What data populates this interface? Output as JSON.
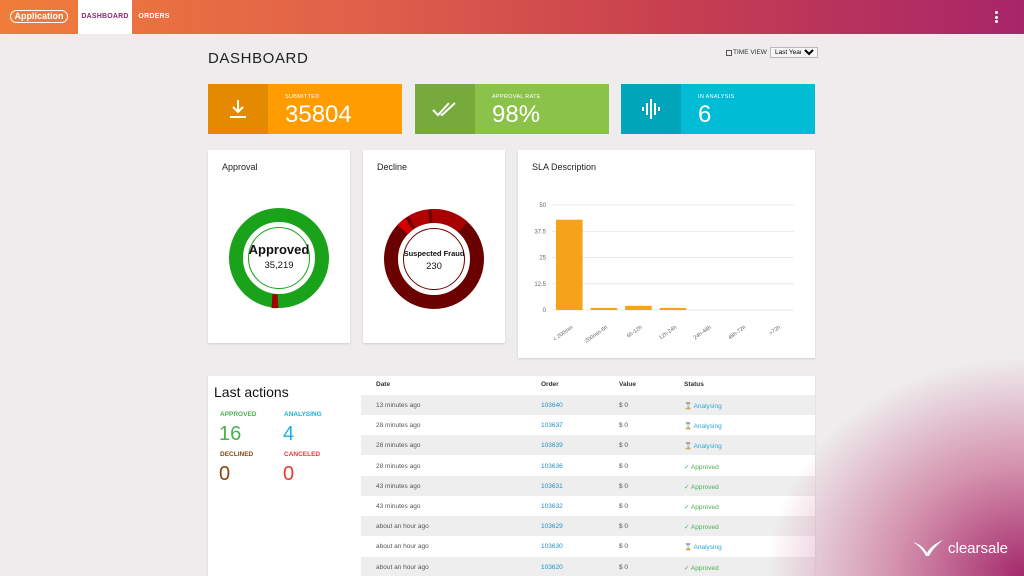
{
  "header": {
    "logo": "Application",
    "tabs": [
      {
        "label": "DASHBOARD"
      },
      {
        "label": "ORDERS"
      }
    ]
  },
  "page": {
    "title": "DASHBOARD",
    "time_view_label": "TIME VIEW",
    "time_view_value": "Last Year"
  },
  "stats": [
    {
      "label": "SUBMITTED",
      "value": "35804",
      "color": "#ff9c00",
      "icon_color": "#e38a00",
      "icon": "download-icon"
    },
    {
      "label": "APPROVAL RATE",
      "value": "98%",
      "color": "#8bc34a",
      "icon_color": "#76aa3c",
      "icon": "double-check-icon"
    },
    {
      "label": "IN ANALYSIS",
      "value": "6",
      "color": "#00bcd4",
      "icon_color": "#00a5ba",
      "icon": "waveform-icon"
    }
  ],
  "approval": {
    "title": "Approval",
    "center_label": "Approved",
    "center_value": "35,219",
    "colors": {
      "approved": "#1aa31a",
      "other": "#a30000"
    }
  },
  "decline": {
    "title": "Decline",
    "center_label": "Suspected Fraud",
    "center_value": "230",
    "colors": [
      "#6b0000",
      "#b30000",
      "#d40000"
    ]
  },
  "chart_data": {
    "type": "bar",
    "title": "SLA Description",
    "categories": [
      "< 200min",
      "200min-6h",
      "6h-12h",
      "12h-24h",
      "24h-48h",
      "48h-72h",
      ">72h"
    ],
    "values": [
      43,
      1,
      2,
      1,
      0,
      0,
      0
    ],
    "ylim": [
      0,
      50
    ],
    "yticks": [
      "0",
      "12.5",
      "25",
      "37.5",
      "50"
    ],
    "ytick_values": [
      0,
      12.5,
      25,
      37.5,
      50
    ],
    "color": "#f5a31a",
    "grid": true
  },
  "last_actions": {
    "title": "Last actions",
    "counters": [
      {
        "label": "APPROVED",
        "value": "16",
        "color": "#4caf50"
      },
      {
        "label": "ANALYSING",
        "value": "4",
        "color": "#1ab0d9"
      },
      {
        "label": "DECLINED",
        "value": "0",
        "color": "#8b4513"
      },
      {
        "label": "CANCELED",
        "value": "0",
        "color": "#e53935"
      }
    ]
  },
  "table": {
    "headers": [
      "Date",
      "Order",
      "Value",
      "Status"
    ],
    "rows": [
      {
        "date": "13 minutes ago",
        "order": "103640",
        "value": "$ 0",
        "status": "Analysing"
      },
      {
        "date": "28 minutes ago",
        "order": "103637",
        "value": "$ 0",
        "status": "Analysing"
      },
      {
        "date": "28 minutes ago",
        "order": "103639",
        "value": "$ 0",
        "status": "Analysing"
      },
      {
        "date": "28 minutes ago",
        "order": "103636",
        "value": "$ 0",
        "status": "Approved"
      },
      {
        "date": "43 minutes ago",
        "order": "103631",
        "value": "$ 0",
        "status": "Approved"
      },
      {
        "date": "43 minutes ago",
        "order": "103632",
        "value": "$ 0",
        "status": "Approved"
      },
      {
        "date": "about an hour ago",
        "order": "103629",
        "value": "$ 0",
        "status": "Approved"
      },
      {
        "date": "about an hour ago",
        "order": "103630",
        "value": "$ 0",
        "status": "Analysing"
      },
      {
        "date": "about an hour ago",
        "order": "103620",
        "value": "$ 0",
        "status": "Approved"
      }
    ]
  },
  "brand": "clearsale"
}
